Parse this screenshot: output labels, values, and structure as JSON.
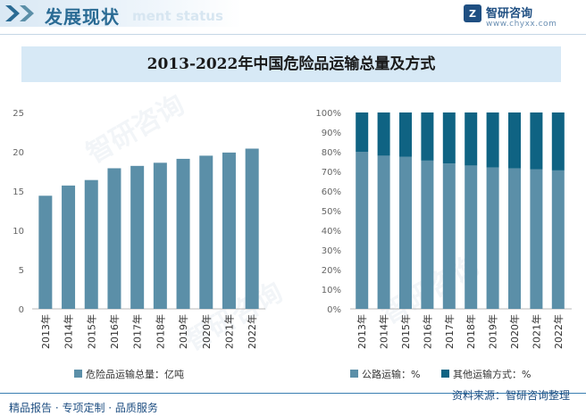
{
  "header": {
    "section_title": "发展现状",
    "section_title_en": "ment status",
    "brand_name": "智研咨询",
    "brand_url": "www.chyxx.com"
  },
  "title": "2013-2022年中国危险品运输总量及方式",
  "footer": {
    "left": "精品报告 · 专项定制 · 品质服务",
    "source": "资料来源：智研咨询整理"
  },
  "watermark": "智研咨询",
  "colors": {
    "bar": "#5b8fa8",
    "road": "#5b8fa8",
    "other": "#0f6383",
    "accent": "#2a6b94",
    "title_band": "#d7e9f6"
  },
  "chart_data": [
    {
      "type": "bar",
      "categories": [
        "2013年",
        "2014年",
        "2015年",
        "2016年",
        "2017年",
        "2018年",
        "2019年",
        "2020年",
        "2021年",
        "2022年"
      ],
      "series": [
        {
          "name": "危险品运输总量：亿吨",
          "values": [
            14.4,
            15.7,
            16.4,
            17.9,
            18.2,
            18.6,
            19.1,
            19.5,
            19.9,
            20.4
          ]
        }
      ],
      "ylim": [
        0,
        25
      ],
      "yticks": [
        0,
        5,
        10,
        15,
        20,
        25
      ],
      "grid": false,
      "legend_position": "bottom"
    },
    {
      "type": "bar",
      "stacked": true,
      "categories": [
        "2013年",
        "2014年",
        "2015年",
        "2016年",
        "2017年",
        "2018年",
        "2019年",
        "2020年",
        "2021年",
        "2022年"
      ],
      "series": [
        {
          "name": "公路运输：%",
          "values": [
            80,
            78,
            77.5,
            75.5,
            74,
            73,
            72,
            71.5,
            71,
            70.5
          ]
        },
        {
          "name": "其他运输方式：%",
          "values": [
            20,
            22,
            22.5,
            24.5,
            26,
            27,
            28,
            28.5,
            29,
            29.5
          ]
        }
      ],
      "ylim": [
        0,
        100
      ],
      "yticks": [
        "0%",
        "10%",
        "20%",
        "30%",
        "40%",
        "50%",
        "60%",
        "70%",
        "80%",
        "90%",
        "100%"
      ],
      "grid": false,
      "legend_position": "bottom"
    }
  ]
}
